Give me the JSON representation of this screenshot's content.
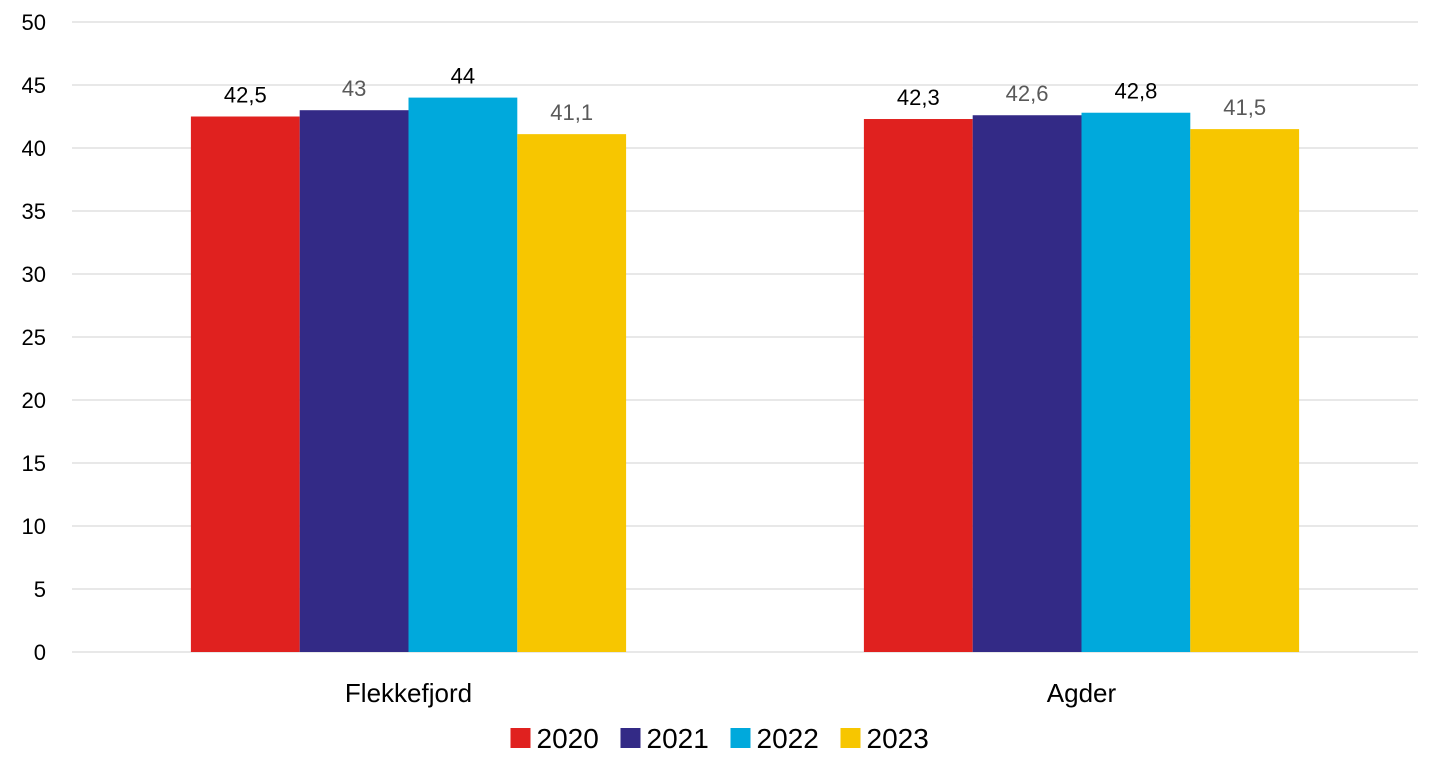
{
  "chart_data": {
    "type": "bar",
    "title": "",
    "xlabel": "",
    "ylabel": "",
    "categories": [
      "Flekkefjord",
      "Agder"
    ],
    "series": [
      {
        "name": "2020",
        "color": "#e0211f",
        "values": [
          42.5,
          42.3
        ],
        "value_labels": [
          "42,5",
          "42,3"
        ],
        "label_color": "#000000"
      },
      {
        "name": "2021",
        "color": "#332a86",
        "values": [
          43,
          42.6
        ],
        "value_labels": [
          "43",
          "42,6"
        ],
        "label_color": "#595959"
      },
      {
        "name": "2022",
        "color": "#00a9dc",
        "values": [
          44,
          42.8
        ],
        "value_labels": [
          "44",
          "42,8"
        ],
        "label_color": "#000000"
      },
      {
        "name": "2023",
        "color": "#f7c600",
        "values": [
          41.1,
          41.5
        ],
        "value_labels": [
          "41,1",
          "41,5"
        ],
        "label_color": "#595959"
      }
    ],
    "ylim": [
      0,
      50
    ],
    "y_ticks": [
      0,
      5,
      10,
      15,
      20,
      25,
      30,
      35,
      40,
      45,
      50
    ],
    "grid": true,
    "legend_position": "bottom"
  }
}
